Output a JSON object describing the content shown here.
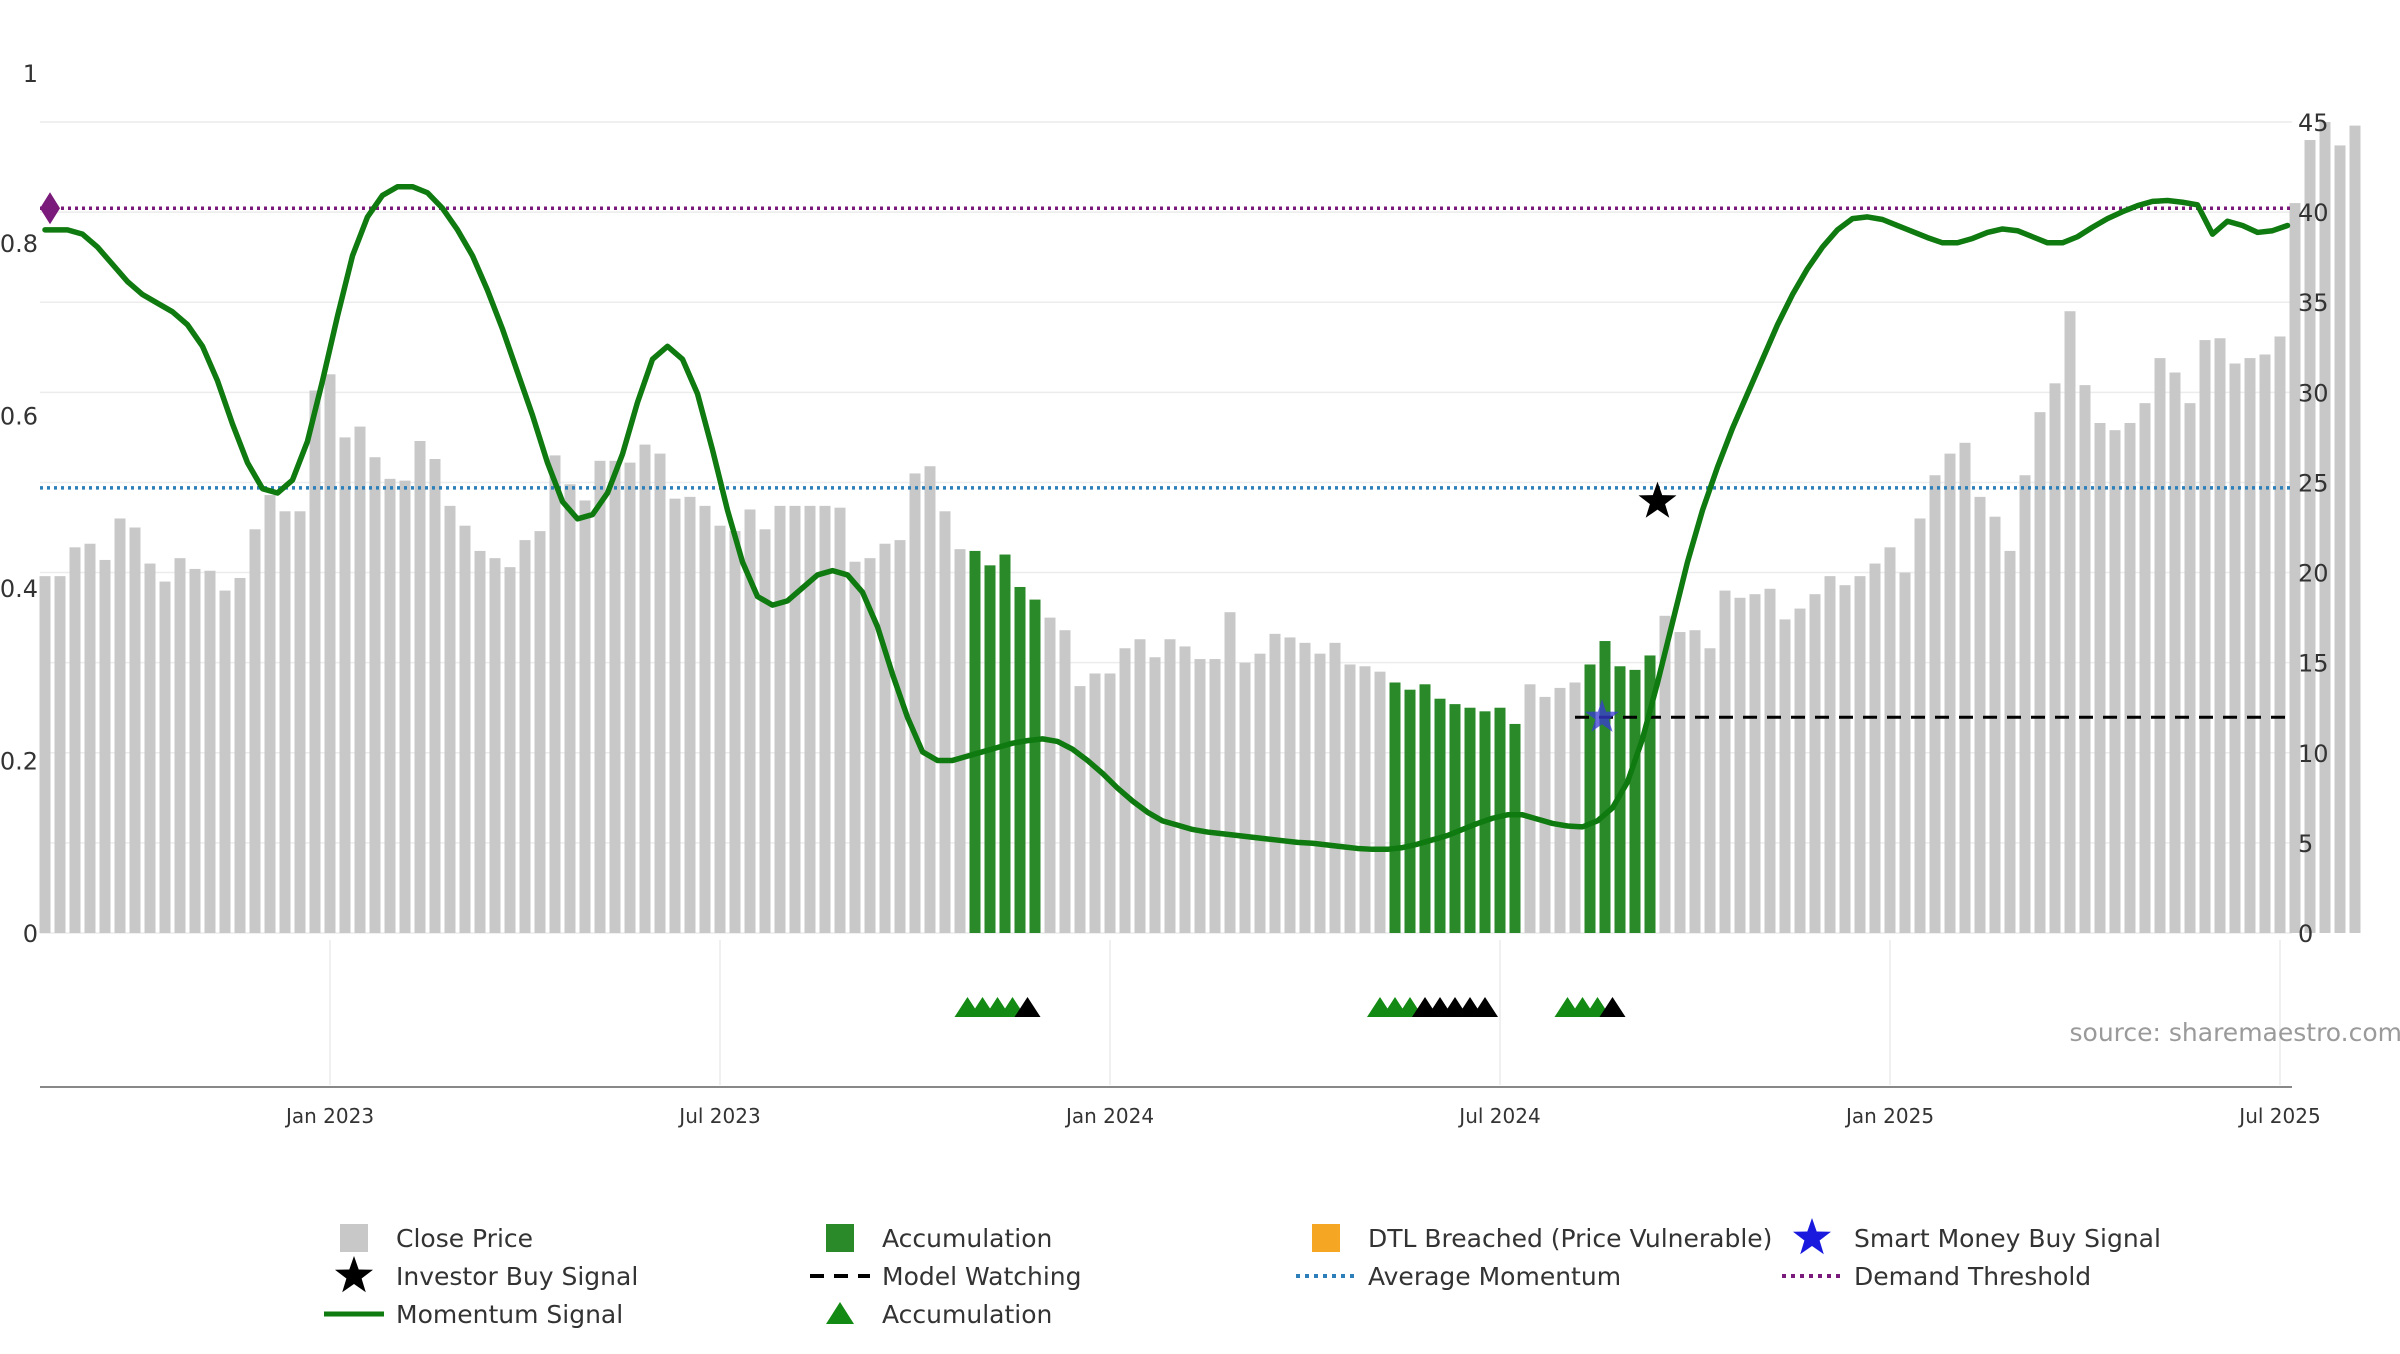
{
  "source_label": "source: sharemaestro.com",
  "colors": {
    "close_price": "#c8c8c8",
    "accumulation": "#2a8a2a",
    "dtl_breached": "#f8d68a",
    "momentum": "#0f7a0f",
    "avg_momentum": "#2c7fb8",
    "demand_threshold": "#7a1a7a",
    "model_watching": "#000000",
    "investor_star": "#000000",
    "smart_money_star": "#3a3ad4",
    "accum_triangle": "#138a13",
    "black_triangle": "#000000",
    "grid": "#ececec",
    "axis_text": "#333333"
  },
  "chart_data": {
    "type": "bar+line",
    "title": "",
    "left_axis": {
      "ticks": [
        "0",
        "0.2",
        "0.4",
        "0.6",
        "0.8",
        "1"
      ],
      "range": [
        0,
        1
      ]
    },
    "right_axis": {
      "ticks": [
        "0",
        "5",
        "10",
        "15",
        "20",
        "25",
        "30",
        "35",
        "40",
        "45"
      ],
      "range": [
        0,
        45
      ]
    },
    "x_axis": {
      "ticks": [
        "Jan 2023",
        "Jul 2023",
        "Jan 2024",
        "Jul 2024",
        "Jan 2025",
        "Jul 2025"
      ],
      "tick_weeks": [
        19,
        45,
        71,
        97,
        123,
        149
      ]
    },
    "close_price": [
      19.8,
      19.8,
      21.4,
      21.6,
      20.7,
      23.0,
      22.5,
      20.5,
      19.5,
      20.8,
      20.2,
      20.1,
      19.0,
      19.7,
      22.4,
      24.3,
      23.4,
      23.4,
      30.1,
      31.0,
      27.5,
      28.1,
      26.4,
      25.2,
      25.1,
      27.3,
      26.3,
      23.7,
      22.6,
      21.2,
      20.8,
      20.3,
      21.8,
      22.3,
      26.5,
      24.9,
      24.0,
      26.2,
      26.2,
      26.1,
      27.1,
      26.6,
      24.1,
      24.2,
      23.7,
      22.6,
      22.3,
      23.5,
      22.4,
      23.7,
      23.7,
      23.7,
      23.7,
      23.6,
      20.6,
      20.8,
      21.6,
      21.8,
      25.5,
      25.9,
      23.4,
      21.3,
      21.2,
      20.4,
      21.0,
      19.2,
      18.5,
      17.5,
      16.8,
      13.7,
      14.4,
      14.4,
      15.8,
      16.3,
      15.3,
      16.3,
      15.9,
      15.2,
      15.2,
      17.8,
      15.0,
      15.5,
      16.6,
      16.4,
      16.1,
      15.5,
      16.1,
      14.9,
      14.8,
      14.5,
      13.9,
      13.5,
      13.8,
      13.0,
      12.7,
      12.5,
      12.3,
      12.5,
      11.6,
      13.8,
      13.1,
      13.6,
      13.9,
      14.9,
      16.2,
      14.8,
      14.6,
      15.4,
      17.6,
      16.7,
      16.8,
      15.8,
      19.0,
      18.6,
      18.8,
      19.1,
      17.4,
      18.0,
      18.8,
      19.8,
      19.3,
      19.8,
      20.5,
      21.4,
      20.0,
      23.0,
      25.4,
      26.6,
      27.2,
      24.2,
      23.1,
      21.2,
      25.4,
      28.9,
      30.5,
      34.5,
      30.4,
      28.3,
      27.9,
      28.3,
      29.4,
      31.9,
      31.1,
      29.4,
      32.9,
      33.0,
      31.6,
      31.9,
      32.1,
      33.1,
      40.5,
      44.0,
      45.0,
      43.7,
      44.8
    ],
    "accumulation_ranges": [
      [
        62,
        66
      ],
      [
        90,
        98
      ],
      [
        103,
        107
      ]
    ],
    "dtl_breached_from_index": 155,
    "momentum": [
      [
        0.0,
        0.815
      ],
      [
        0.5,
        0.815
      ],
      [
        1.5,
        0.815
      ],
      [
        2.5,
        0.81
      ],
      [
        3.5,
        0.795
      ],
      [
        4.5,
        0.775
      ],
      [
        5.5,
        0.755
      ],
      [
        6.5,
        0.74
      ],
      [
        7.5,
        0.73
      ],
      [
        8.5,
        0.72
      ],
      [
        9.5,
        0.705
      ],
      [
        10.5,
        0.68
      ],
      [
        11.5,
        0.64
      ],
      [
        12.5,
        0.59
      ],
      [
        13.5,
        0.545
      ],
      [
        14.5,
        0.515
      ],
      [
        15.5,
        0.51
      ],
      [
        16.5,
        0.525
      ],
      [
        17.5,
        0.57
      ],
      [
        18.5,
        0.64
      ],
      [
        19.5,
        0.715
      ],
      [
        20.5,
        0.785
      ],
      [
        21.5,
        0.83
      ],
      [
        22.5,
        0.855
      ],
      [
        23.5,
        0.865
      ],
      [
        24.5,
        0.865
      ],
      [
        25.5,
        0.858
      ],
      [
        26.5,
        0.84
      ],
      [
        27.5,
        0.815
      ],
      [
        28.5,
        0.785
      ],
      [
        29.5,
        0.745
      ],
      [
        30.5,
        0.7
      ],
      [
        31.5,
        0.65
      ],
      [
        32.5,
        0.6
      ],
      [
        33.5,
        0.545
      ],
      [
        34.5,
        0.5
      ],
      [
        35.5,
        0.48
      ],
      [
        36.5,
        0.485
      ],
      [
        37.5,
        0.51
      ],
      [
        38.5,
        0.555
      ],
      [
        39.5,
        0.615
      ],
      [
        40.5,
        0.665
      ],
      [
        41.5,
        0.68
      ],
      [
        42.5,
        0.665
      ],
      [
        43.5,
        0.625
      ],
      [
        44.5,
        0.56
      ],
      [
        45.5,
        0.49
      ],
      [
        46.5,
        0.43
      ],
      [
        47.5,
        0.39
      ],
      [
        48.5,
        0.38
      ],
      [
        49.5,
        0.385
      ],
      [
        50.5,
        0.4
      ],
      [
        51.5,
        0.415
      ],
      [
        52.5,
        0.42
      ],
      [
        53.5,
        0.415
      ],
      [
        54.5,
        0.395
      ],
      [
        55.5,
        0.355
      ],
      [
        56.5,
        0.3
      ],
      [
        57.5,
        0.25
      ],
      [
        58.5,
        0.21
      ],
      [
        59.5,
        0.2
      ],
      [
        60.5,
        0.2
      ],
      [
        61.5,
        0.205
      ],
      [
        62.5,
        0.21
      ],
      [
        63.5,
        0.215
      ],
      [
        64.5,
        0.22
      ],
      [
        65.5,
        0.223
      ],
      [
        66.5,
        0.225
      ],
      [
        67.5,
        0.222
      ],
      [
        68.5,
        0.213
      ],
      [
        69.5,
        0.2
      ],
      [
        70.5,
        0.185
      ],
      [
        71.5,
        0.168
      ],
      [
        72.5,
        0.153
      ],
      [
        73.5,
        0.14
      ],
      [
        74.5,
        0.13
      ],
      [
        75.5,
        0.125
      ],
      [
        76.5,
        0.12
      ],
      [
        77.5,
        0.117
      ],
      [
        78.5,
        0.115
      ],
      [
        79.5,
        0.113
      ],
      [
        80.5,
        0.111
      ],
      [
        81.5,
        0.109
      ],
      [
        82.5,
        0.107
      ],
      [
        83.5,
        0.105
      ],
      [
        84.5,
        0.104
      ],
      [
        85.5,
        0.102
      ],
      [
        86.5,
        0.1
      ],
      [
        87.5,
        0.098
      ],
      [
        88.5,
        0.097
      ],
      [
        89.5,
        0.097
      ],
      [
        90.5,
        0.099
      ],
      [
        91.5,
        0.103
      ],
      [
        92.5,
        0.108
      ],
      [
        93.5,
        0.113
      ],
      [
        94.5,
        0.12
      ],
      [
        95.5,
        0.127
      ],
      [
        96.5,
        0.133
      ],
      [
        97.5,
        0.137
      ],
      [
        98.5,
        0.137
      ],
      [
        99.5,
        0.132
      ],
      [
        100.5,
        0.127
      ],
      [
        101.5,
        0.124
      ],
      [
        102.5,
        0.123
      ],
      [
        103.5,
        0.13
      ],
      [
        104.5,
        0.145
      ],
      [
        105.5,
        0.175
      ],
      [
        106.5,
        0.225
      ],
      [
        107.5,
        0.29
      ],
      [
        108.5,
        0.36
      ],
      [
        109.5,
        0.43
      ],
      [
        110.5,
        0.49
      ],
      [
        111.5,
        0.54
      ],
      [
        112.5,
        0.585
      ],
      [
        113.5,
        0.625
      ],
      [
        114.5,
        0.665
      ],
      [
        115.5,
        0.705
      ],
      [
        116.5,
        0.74
      ],
      [
        117.5,
        0.77
      ],
      [
        118.5,
        0.795
      ],
      [
        119.5,
        0.815
      ],
      [
        120.5,
        0.828
      ],
      [
        121.5,
        0.83
      ],
      [
        122.5,
        0.827
      ],
      [
        123.5,
        0.82
      ],
      [
        124.5,
        0.813
      ],
      [
        125.5,
        0.806
      ],
      [
        126.5,
        0.8
      ],
      [
        127.5,
        0.8
      ],
      [
        128.5,
        0.805
      ],
      [
        129.5,
        0.812
      ],
      [
        130.5,
        0.816
      ],
      [
        131.5,
        0.814
      ],
      [
        132.5,
        0.807
      ],
      [
        133.5,
        0.8
      ],
      [
        134.5,
        0.8
      ],
      [
        135.5,
        0.807
      ],
      [
        136.5,
        0.818
      ],
      [
        137.5,
        0.828
      ],
      [
        138.5,
        0.836
      ],
      [
        139.5,
        0.843
      ],
      [
        140.5,
        0.848
      ],
      [
        141.5,
        0.849
      ],
      [
        142.5,
        0.847
      ],
      [
        143.5,
        0.844
      ],
      [
        144.5,
        0.81
      ],
      [
        145.5,
        0.825
      ],
      [
        146.5,
        0.82
      ],
      [
        147.5,
        0.812
      ],
      [
        148.5,
        0.814
      ],
      [
        149.5,
        0.82
      ]
    ],
    "average_momentum": 0.516,
    "demand_threshold": 0.84,
    "model_watching": {
      "from_week": 102,
      "to_week": 150,
      "value": 0.25
    },
    "investor_buy_signal": {
      "week": 107.5,
      "value": 0.5
    },
    "smart_money_buy_signal": {
      "week": 103.8,
      "value": 0.25
    },
    "accumulation_triangles": [
      {
        "week": 61.5,
        "color": "green"
      },
      {
        "week": 62.5,
        "color": "green"
      },
      {
        "week": 63.5,
        "color": "green"
      },
      {
        "week": 64.5,
        "color": "green"
      },
      {
        "week": 65.5,
        "color": "black"
      },
      {
        "week": 89.0,
        "color": "green"
      },
      {
        "week": 90.0,
        "color": "green"
      },
      {
        "week": 91.0,
        "color": "green"
      },
      {
        "week": 92.0,
        "color": "black"
      },
      {
        "week": 93.0,
        "color": "black"
      },
      {
        "week": 94.0,
        "color": "black"
      },
      {
        "week": 95.0,
        "color": "black"
      },
      {
        "week": 96.0,
        "color": "black"
      },
      {
        "week": 101.5,
        "color": "green"
      },
      {
        "week": 102.5,
        "color": "green"
      },
      {
        "week": 103.5,
        "color": "green"
      },
      {
        "week": 104.5,
        "color": "black"
      }
    ]
  },
  "legend": [
    {
      "label": "Close Price",
      "symbol": "square-gray",
      "icon": "gray-square-icon"
    },
    {
      "label": "Accumulation",
      "symbol": "square-green",
      "icon": "green-square-icon"
    },
    {
      "label": "DTL Breached (Price Vulnerable)",
      "symbol": "square-orange",
      "icon": "orange-square-icon"
    },
    {
      "label": "Smart Money Buy Signal",
      "symbol": "star-blue",
      "icon": "blue-star-icon"
    },
    {
      "label": "Investor Buy Signal",
      "symbol": "star-black",
      "icon": "black-star-icon"
    },
    {
      "label": "Model Watching",
      "symbol": "dash-black",
      "icon": "dashed-line-icon"
    },
    {
      "label": "Average Momentum",
      "symbol": "dot-blue",
      "icon": "dotted-blue-line-icon"
    },
    {
      "label": "Demand Threshold",
      "symbol": "dot-purple",
      "icon": "dotted-purple-line-icon"
    },
    {
      "label": "Momentum Signal",
      "symbol": "line-green",
      "icon": "green-line-icon"
    },
    {
      "label": "Accumulation",
      "symbol": "triangle-green",
      "icon": "green-triangle-icon"
    }
  ]
}
